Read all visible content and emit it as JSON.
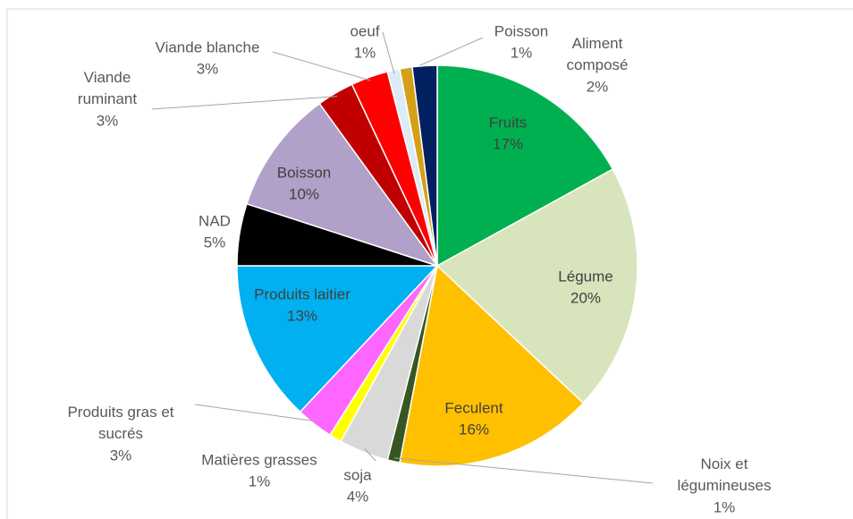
{
  "chart_data": {
    "type": "pie",
    "categories": [
      "Fruits",
      "Légume",
      "Feculent",
      "Noix et légumineuses",
      "soja",
      "Matières grasses",
      "Produits gras et sucrés",
      "Produits laitier",
      "NAD",
      "Boisson",
      "Viande ruminant",
      "Viande blanche",
      "oeuf",
      "Poisson",
      "Aliment composé"
    ],
    "values": [
      17,
      20,
      16,
      1,
      4,
      1,
      3,
      13,
      5,
      10,
      3,
      3,
      1,
      1,
      2
    ],
    "value_labels": [
      "17%",
      "20%",
      "16%",
      "1%",
      "4%",
      "1%",
      "3%",
      "13%",
      "5%",
      "10%",
      "3%",
      "3%",
      "1%",
      "1%",
      "2%"
    ],
    "colors": [
      "#00b050",
      "#d8e4bc",
      "#ffc000",
      "#375623",
      "#d9d9d9",
      "#ffff00",
      "#ff66ff",
      "#00b0f0",
      "#000000",
      "#b1a0c7",
      "#c00000",
      "#ff0000",
      "#ddebf7",
      "#d4a017",
      "#002060"
    ]
  }
}
